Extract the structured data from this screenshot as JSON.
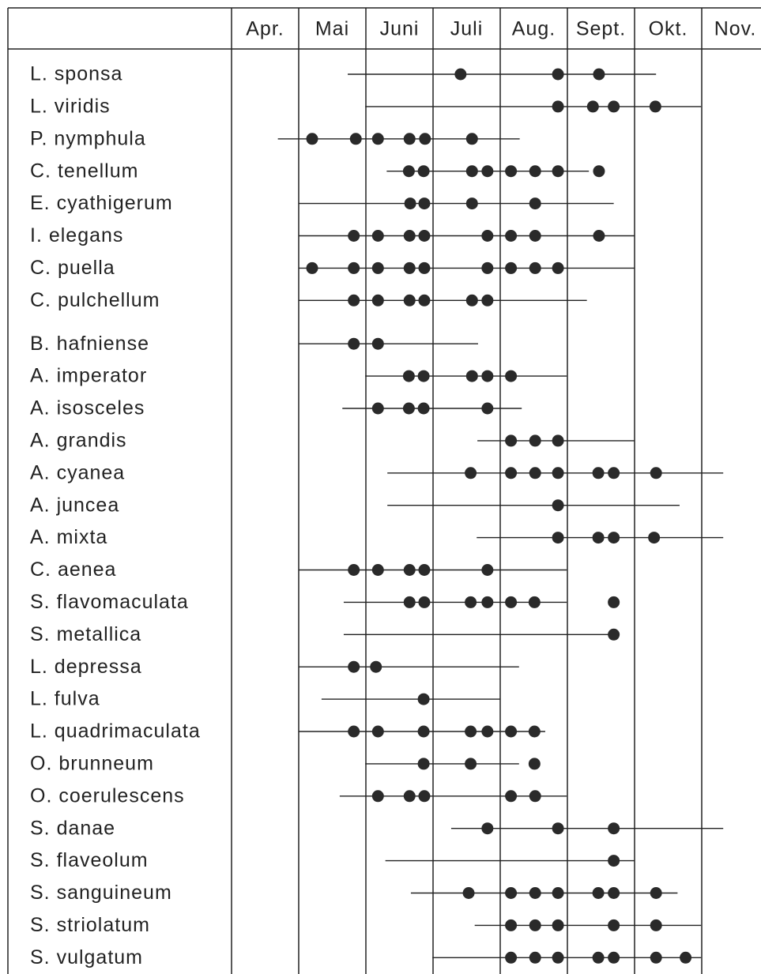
{
  "chart_data": {
    "type": "timeline",
    "categories": [
      "Apr.",
      "Mai",
      "Juni",
      "Juli",
      "Aug.",
      "Sept.",
      "Okt.",
      "Nov."
    ],
    "xlim": [
      4,
      11.9
    ],
    "rows": [
      {
        "name": "L. sponsa",
        "range": [
          5.73,
          10.32
        ],
        "points": [
          7.41,
          8.86,
          9.47
        ]
      },
      {
        "name": "L. viridis",
        "range": [
          5.99,
          10.99
        ],
        "points": [
          8.86,
          9.38,
          9.69,
          10.31
        ]
      },
      {
        "name": "P. nymphula",
        "range": [
          4.69,
          8.29
        ],
        "points": [
          5.2,
          5.85,
          6.18,
          6.65,
          6.88,
          7.58
        ]
      },
      {
        "name": "C. tenellum",
        "range": [
          6.31,
          9.32
        ],
        "points": [
          6.64,
          6.86,
          7.58,
          7.81,
          8.16,
          8.52,
          8.86,
          9.47
        ]
      },
      {
        "name": "E. cyathigerum",
        "range": [
          5.0,
          9.69
        ],
        "points": [
          6.66,
          6.87,
          7.58,
          8.52
        ]
      },
      {
        "name": "I. elegans",
        "range": [
          5.0,
          10.0
        ],
        "points": [
          5.82,
          6.18,
          6.65,
          6.87,
          7.81,
          8.16,
          8.52,
          9.47
        ]
      },
      {
        "name": "C. puella",
        "range": [
          5.0,
          10.0
        ],
        "points": [
          5.2,
          5.82,
          6.18,
          6.65,
          6.87,
          7.81,
          8.16,
          8.52,
          8.86
        ]
      },
      {
        "name": "C. pulchellum",
        "range": [
          5.0,
          9.29
        ],
        "points": [
          5.82,
          6.18,
          6.65,
          6.87,
          7.58,
          7.81
        ]
      },
      {
        "name": "B. hafniense",
        "range": [
          5.0,
          7.67
        ],
        "points": [
          5.82,
          6.18
        ]
      },
      {
        "name": "A. imperator",
        "range": [
          5.99,
          8.99
        ],
        "points": [
          6.64,
          6.86,
          7.58,
          7.81,
          8.16
        ]
      },
      {
        "name": "A. isosceles",
        "range": [
          5.65,
          8.32
        ],
        "points": [
          6.18,
          6.64,
          6.86,
          7.81
        ]
      },
      {
        "name": "A. grandis",
        "range": [
          7.66,
          10.0
        ],
        "points": [
          8.16,
          8.52,
          8.86
        ]
      },
      {
        "name": "A. cyanea",
        "range": [
          6.32,
          11.32
        ],
        "points": [
          7.56,
          8.16,
          8.52,
          8.86,
          9.46,
          9.69,
          10.32
        ]
      },
      {
        "name": "A. juncea",
        "range": [
          6.32,
          10.67
        ],
        "points": [
          8.86
        ]
      },
      {
        "name": "A. mixta",
        "range": [
          7.65,
          11.32
        ],
        "points": [
          8.86,
          9.46,
          9.69,
          10.29
        ]
      },
      {
        "name": "C. aenea",
        "range": [
          5.0,
          8.99
        ],
        "points": [
          5.82,
          6.18,
          6.65,
          6.87,
          7.81
        ]
      },
      {
        "name": "S. flavomaculata",
        "range": [
          5.67,
          8.99
        ],
        "points": [
          6.65,
          6.87,
          7.56,
          7.81,
          8.16,
          8.51,
          9.69
        ]
      },
      {
        "name": "S. metallica",
        "range": [
          5.67,
          9.69
        ],
        "points": [
          9.69
        ]
      },
      {
        "name": "L. depressa",
        "range": [
          5.0,
          8.28
        ],
        "points": [
          5.82,
          6.15
        ]
      },
      {
        "name": "L. fulva",
        "range": [
          5.34,
          8.0
        ],
        "points": [
          6.86
        ]
      },
      {
        "name": "L. quadrimaculata",
        "range": [
          5.0,
          8.67
        ],
        "points": [
          5.82,
          6.18,
          6.86,
          7.56,
          7.81,
          8.16,
          8.51
        ]
      },
      {
        "name": "O. brunneum",
        "range": [
          5.99,
          8.28
        ],
        "points": [
          6.86,
          7.56,
          8.51
        ]
      },
      {
        "name": "O. coerulescens",
        "range": [
          5.61,
          8.99
        ],
        "points": [
          6.18,
          6.65,
          6.87,
          8.16,
          8.52
        ]
      },
      {
        "name": "S. danae",
        "range": [
          7.27,
          11.32
        ],
        "points": [
          7.81,
          8.86,
          9.69
        ]
      },
      {
        "name": "S. flaveolum",
        "range": [
          6.29,
          10.0
        ],
        "points": [
          9.69
        ]
      },
      {
        "name": "S. sanguineum",
        "range": [
          6.67,
          10.64
        ],
        "points": [
          7.53,
          8.16,
          8.52,
          8.86,
          9.46,
          9.69,
          10.32
        ]
      },
      {
        "name": "S. striolatum",
        "range": [
          7.62,
          10.99
        ],
        "points": [
          8.16,
          8.52,
          8.86,
          9.69,
          10.32
        ]
      },
      {
        "name": "S. vulgatum",
        "range": [
          6.99,
          10.99
        ],
        "points": [
          8.16,
          8.52,
          8.86,
          9.46,
          9.69,
          10.32,
          10.76
        ]
      }
    ]
  }
}
